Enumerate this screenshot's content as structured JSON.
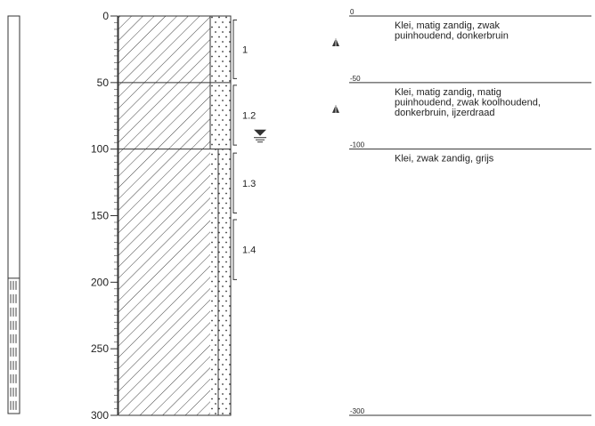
{
  "depth_axis": {
    "ticks": [
      "0",
      "50",
      "100",
      "150",
      "200",
      "250",
      "300"
    ],
    "range_cm": [
      0,
      300
    ]
  },
  "layer_boundaries": [
    {
      "depth": 0,
      "label": "0"
    },
    {
      "depth": 50,
      "label": "-50"
    },
    {
      "depth": 100,
      "label": "-100"
    },
    {
      "depth": 300,
      "label": "-300"
    }
  ],
  "layers": [
    {
      "top": 0,
      "bottom": 50,
      "lines": [
        "Klei, matig zandig, zwak",
        "puinhoudend, donkerbruin"
      ],
      "marker": true
    },
    {
      "top": 50,
      "bottom": 100,
      "lines": [
        "Klei, matig zandig, matig",
        "puinhoudend, zwak koolhoudend,",
        "donkerbruin, ijzerdraad"
      ],
      "marker": true
    },
    {
      "top": 100,
      "bottom": 300,
      "lines": [
        "Klei, zwak zandig, grijs"
      ],
      "marker": false
    }
  ],
  "samples": [
    {
      "label": "1",
      "top": 3,
      "bottom": 47
    },
    {
      "label": "1.2",
      "top": 52,
      "bottom": 97
    },
    {
      "label": "1.3",
      "top": 103,
      "bottom": 148
    },
    {
      "label": "1.4",
      "top": 153,
      "bottom": 198
    }
  ],
  "groundwater_depth": 88,
  "left_strip": {
    "blank_until": 197,
    "dashed_from": 197
  }
}
